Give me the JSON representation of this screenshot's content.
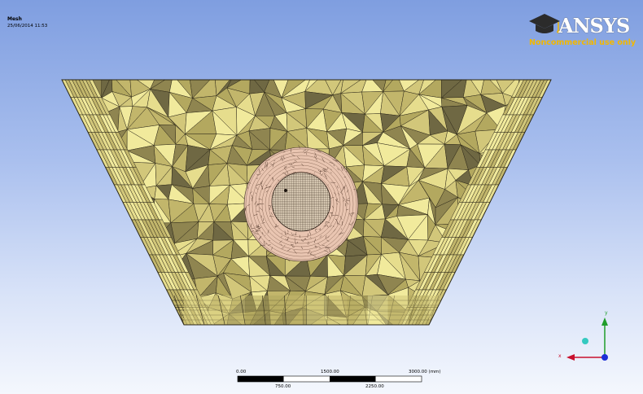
{
  "header": {
    "title": "Mesh",
    "date": "25/06/2014 11:53"
  },
  "logo": {
    "word": "ANSYS",
    "tagline": "Noncommercial use only",
    "accent": "#f2b800"
  },
  "scale": {
    "top_labels": [
      "0.00",
      "1500.00",
      "3000.00 (mm)"
    ],
    "bottom_labels": [
      "750.00",
      "2250.00"
    ]
  },
  "triad": {
    "x_label": "x",
    "y_label": "y",
    "x_color": "#c8102e",
    "y_color": "#1f9d2a",
    "z_color": "#1c2fd6"
  },
  "mesh_colors": {
    "outer": "#f1ea9c",
    "inner_ring": "#e8c4b0",
    "core": "#f3e2c8",
    "line": "#2f2a1a"
  }
}
